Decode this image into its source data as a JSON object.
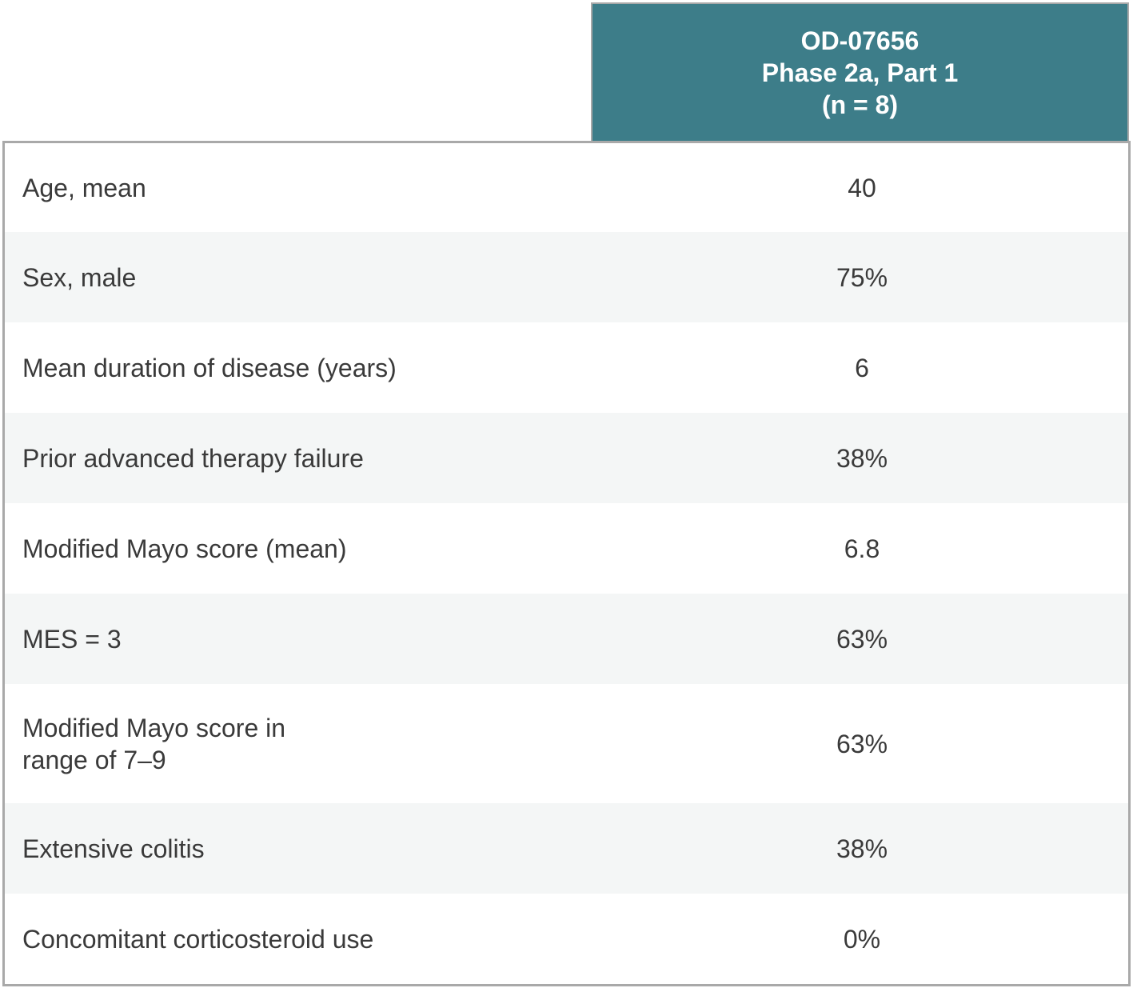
{
  "header": {
    "line1": "OD-07656",
    "line2": "Phase 2a, Part 1",
    "line3": "(n = 8)"
  },
  "rows": [
    {
      "label": "Age, mean",
      "value": "40"
    },
    {
      "label": "Sex, male",
      "value": "75%"
    },
    {
      "label": "Mean duration of disease (years)",
      "value": "6"
    },
    {
      "label": "Prior advanced therapy failure",
      "value": "38%"
    },
    {
      "label": "Modified Mayo score (mean)",
      "value": "6.8"
    },
    {
      "label": "MES = 3",
      "value": "63%"
    },
    {
      "label_line1": "Modified Mayo score in",
      "label_line2": "range of 7–9",
      "value": "63%"
    },
    {
      "label": "Extensive colitis",
      "value": "38%"
    },
    {
      "label": "Concomitant corticosteroid use",
      "value": "0%"
    }
  ],
  "colors": {
    "header_bg": "#3d7d89",
    "header_text": "#ffffff",
    "border": "#a9a9a9",
    "row_shade": "#f4f6f6",
    "text": "#3a3a3a"
  }
}
